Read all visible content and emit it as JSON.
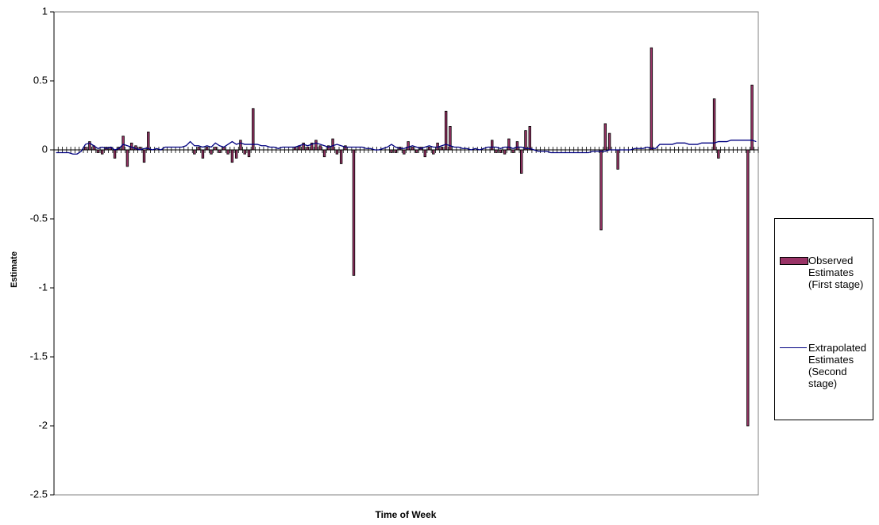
{
  "chart_data": {
    "type": "bar_line",
    "x_label": "Time of Week",
    "y_label": "Estimate",
    "categories": [
      null,
      null,
      null,
      null,
      null,
      null,
      null,
      null,
      null,
      null,
      null,
      null,
      null,
      null,
      null,
      null,
      null,
      null,
      null,
      null,
      null,
      null,
      null,
      null,
      null,
      null,
      null,
      null,
      null,
      null,
      null,
      null,
      null,
      null,
      null,
      null,
      null,
      null,
      null,
      null,
      null,
      null,
      null,
      null,
      null,
      null,
      null,
      null,
      null,
      null,
      null,
      null,
      null,
      null,
      null,
      null,
      null,
      null,
      null,
      null,
      null,
      null,
      null,
      null,
      null,
      null,
      null,
      null,
      null,
      null,
      null,
      null,
      null,
      null,
      null,
      null,
      null,
      null,
      null,
      null,
      null,
      null,
      null,
      null,
      null,
      null,
      null,
      null,
      null,
      null,
      null,
      null,
      null,
      null,
      null,
      null,
      null,
      null,
      null,
      null,
      null,
      null,
      null,
      null,
      null,
      null,
      null,
      null,
      null,
      null,
      null,
      null,
      null,
      null,
      null,
      null,
      null,
      null,
      null,
      null,
      null,
      null,
      null,
      null,
      null,
      null,
      null,
      null,
      null,
      null,
      null,
      null,
      null,
      null,
      null,
      null,
      null,
      null,
      null,
      null,
      null,
      null,
      null,
      null,
      null,
      null,
      null,
      null,
      null,
      null,
      null,
      null,
      null,
      null,
      null,
      null,
      null,
      null,
      null,
      null,
      null,
      null,
      null,
      null,
      null,
      null,
      null,
      null
    ],
    "series": [
      {
        "name": "Observed Estimates (First stage)",
        "type": "bar",
        "color": "#993366",
        "values": [
          null,
          null,
          null,
          null,
          null,
          null,
          null,
          0.02,
          0.06,
          0.03,
          -0.02,
          -0.03,
          0.02,
          0.02,
          -0.06,
          0.02,
          0.1,
          -0.12,
          0.05,
          0.03,
          0.02,
          -0.09,
          0.13,
          null,
          null,
          null,
          null,
          null,
          null,
          null,
          null,
          null,
          null,
          -0.03,
          0.02,
          -0.06,
          0.02,
          -0.03,
          0.02,
          -0.02,
          0.02,
          -0.03,
          -0.09,
          -0.06,
          0.07,
          -0.03,
          -0.05,
          0.3,
          null,
          null,
          null,
          null,
          null,
          null,
          null,
          null,
          null,
          0.02,
          0.03,
          0.05,
          0.02,
          0.05,
          0.07,
          0.03,
          -0.05,
          0.03,
          0.08,
          -0.03,
          -0.1,
          0.03,
          null,
          -0.91,
          null,
          null,
          null,
          null,
          null,
          null,
          null,
          null,
          -0.02,
          -0.02,
          0.02,
          -0.03,
          0.06,
          0.02,
          -0.02,
          0.02,
          -0.05,
          0.02,
          -0.03,
          0.05,
          0.02,
          0.28,
          0.17,
          null,
          null,
          null,
          null,
          null,
          null,
          null,
          null,
          null,
          0.07,
          -0.02,
          -0.02,
          -0.03,
          0.08,
          -0.02,
          0.06,
          -0.17,
          0.14,
          0.17,
          null,
          null,
          null,
          null,
          null,
          null,
          null,
          null,
          null,
          null,
          null,
          null,
          null,
          null,
          null,
          null,
          -0.58,
          0.19,
          0.12,
          null,
          -0.14,
          null,
          null,
          null,
          null,
          null,
          null,
          null,
          0.74,
          null,
          null,
          null,
          null,
          null,
          null,
          null,
          null,
          null,
          null,
          null,
          null,
          null,
          null,
          0.37,
          -0.06,
          null,
          null,
          null,
          null,
          null,
          null,
          -2.0,
          0.47,
          null
        ]
      },
      {
        "name": "Extrapolated Estimates (Second stage)",
        "type": "line",
        "color": "#000080",
        "values": [
          -0.02,
          -0.02,
          -0.02,
          -0.02,
          -0.03,
          -0.03,
          -0.01,
          0.04,
          0.05,
          0.03,
          0.01,
          0.02,
          0.01,
          0.02,
          0.0,
          0.01,
          0.04,
          0.03,
          0.02,
          0.01,
          0.0,
          0.01,
          0.01,
          0.0,
          0.01,
          0.0,
          0.02,
          0.02,
          0.02,
          0.02,
          0.02,
          0.03,
          0.06,
          0.03,
          0.03,
          0.02,
          0.03,
          0.02,
          0.05,
          0.03,
          0.02,
          0.04,
          0.06,
          0.04,
          0.05,
          0.04,
          0.04,
          0.04,
          0.04,
          0.03,
          0.03,
          0.02,
          0.02,
          0.01,
          0.02,
          0.02,
          0.02,
          0.02,
          0.03,
          0.04,
          0.03,
          0.04,
          0.05,
          0.04,
          0.03,
          0.02,
          0.03,
          0.04,
          0.03,
          0.02,
          0.02,
          0.02,
          0.02,
          0.02,
          0.01,
          0.01,
          0.0,
          0.0,
          0.01,
          0.02,
          0.04,
          0.02,
          0.01,
          0.01,
          0.02,
          0.03,
          0.02,
          0.01,
          0.02,
          0.03,
          0.02,
          0.02,
          0.03,
          0.04,
          0.03,
          0.02,
          0.02,
          0.01,
          0.01,
          0.0,
          0.01,
          0.0,
          0.01,
          0.02,
          0.02,
          0.02,
          0.01,
          0.02,
          0.02,
          0.01,
          0.02,
          0.02,
          0.01,
          0.01,
          0.0,
          -0.01,
          -0.01,
          -0.01,
          -0.02,
          -0.02,
          -0.02,
          -0.02,
          -0.02,
          -0.02,
          -0.02,
          -0.02,
          -0.02,
          -0.02,
          -0.01,
          -0.01,
          -0.01,
          -0.01,
          0.0,
          0.0,
          0.0,
          0.0,
          0.0,
          0.0,
          0.01,
          0.01,
          0.01,
          0.02,
          0.01,
          0.01,
          0.04,
          0.04,
          0.04,
          0.04,
          0.05,
          0.05,
          0.05,
          0.04,
          0.04,
          0.04,
          0.05,
          0.05,
          0.05,
          0.05,
          0.06,
          0.06,
          0.06,
          0.07,
          0.07,
          0.07,
          0.07,
          0.07,
          0.07,
          0.06
        ]
      }
    ],
    "ylim": [
      -2.5,
      1
    ],
    "yticks": [
      -2.5,
      -2,
      -1.5,
      -1,
      -0.5,
      0,
      0.5,
      1
    ],
    "grid": false,
    "legend": "right"
  }
}
